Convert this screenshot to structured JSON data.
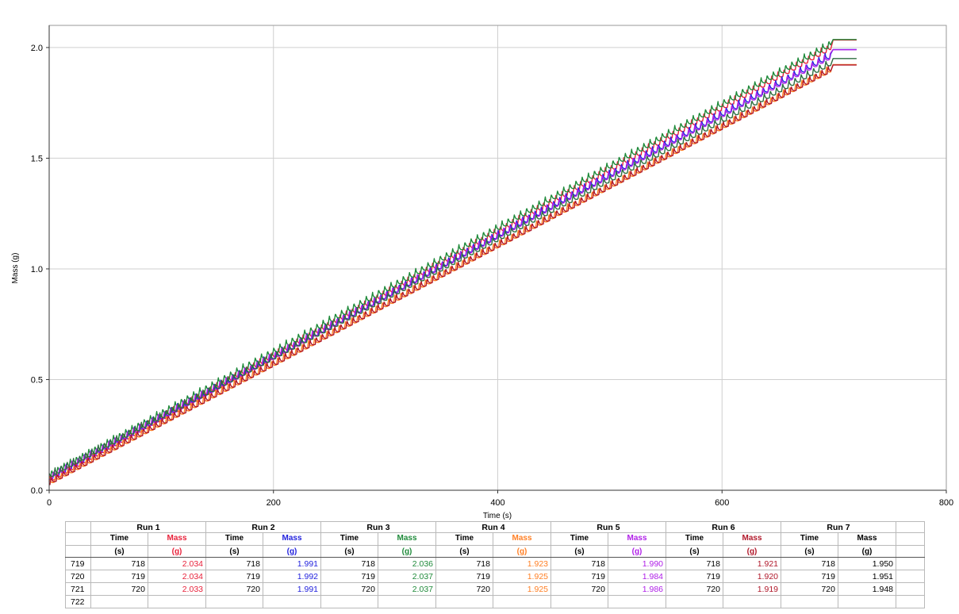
{
  "chart_data": {
    "type": "line",
    "xlabel": "Time (s)",
    "ylabel": "Mass (g)",
    "xlim": [
      0,
      800
    ],
    "ylim": [
      0.0,
      2.1
    ],
    "xticks": [
      "0",
      "200",
      "400",
      "600",
      "800"
    ],
    "yticks": [
      "0.0",
      "0.5",
      "1.0",
      "1.5",
      "2.0"
    ],
    "grid": true,
    "legend": "none",
    "drip_period_s": 5.5,
    "series": [
      {
        "name": "Run 1",
        "color": "#e8213a",
        "x": [
          0,
          697,
          720
        ],
        "y": [
          0.04,
          1.995,
          2.034
        ]
      },
      {
        "name": "Run 2",
        "color": "#2222dd",
        "x": [
          0,
          697,
          720
        ],
        "y": [
          0.05,
          1.96,
          1.991
        ]
      },
      {
        "name": "Run 3",
        "color": "#1f8a3a",
        "x": [
          0,
          697,
          720
        ],
        "y": [
          0.06,
          2.01,
          2.036
        ]
      },
      {
        "name": "Run 4",
        "color": "#ff7f24",
        "x": [
          0,
          697,
          720
        ],
        "y": [
          0.03,
          1.895,
          1.923
        ]
      },
      {
        "name": "Run 5",
        "color": "#b020e8",
        "x": [
          0,
          697,
          720
        ],
        "y": [
          0.05,
          1.955,
          1.99
        ]
      },
      {
        "name": "Run 6",
        "color": "#b0182a",
        "x": [
          0,
          697,
          720
        ],
        "y": [
          0.03,
          1.895,
          1.921
        ]
      },
      {
        "name": "Run 7",
        "color": "#2e6e40",
        "x": [
          0,
          697,
          720
        ],
        "y": [
          0.06,
          1.925,
          1.95
        ]
      }
    ]
  },
  "table": {
    "runs": [
      {
        "title": "Run 1",
        "mass_color": "#e8213a",
        "time_unit": "(s)",
        "mass_unit": "(g)",
        "time_header": "Time",
        "mass_header": "Mass",
        "rows": [
          [
            "718",
            "2.034"
          ],
          [
            "719",
            "2.034"
          ],
          [
            "720",
            "2.033"
          ]
        ]
      },
      {
        "title": "Run 2",
        "mass_color": "#2222dd",
        "time_unit": "(s)",
        "mass_unit": "(g)",
        "time_header": "Time",
        "mass_header": "Mass",
        "rows": [
          [
            "718",
            "1.991"
          ],
          [
            "719",
            "1.992"
          ],
          [
            "720",
            "1.991"
          ]
        ]
      },
      {
        "title": "Run 3",
        "mass_color": "#1f8a3a",
        "time_unit": "(s)",
        "mass_unit": "(g)",
        "time_header": "Time",
        "mass_header": "Mass",
        "rows": [
          [
            "718",
            "2.036"
          ],
          [
            "719",
            "2.037"
          ],
          [
            "720",
            "2.037"
          ]
        ]
      },
      {
        "title": "Run 4",
        "mass_color": "#ff7f24",
        "time_unit": "(s)",
        "mass_unit": "(g)",
        "time_header": "Time",
        "mass_header": "Mass",
        "rows": [
          [
            "718",
            "1.923"
          ],
          [
            "719",
            "1.925"
          ],
          [
            "720",
            "1.925"
          ]
        ]
      },
      {
        "title": "Run 5",
        "mass_color": "#b020e8",
        "time_unit": "(s)",
        "mass_unit": "(g)",
        "time_header": "Time",
        "mass_header": "Mass",
        "rows": [
          [
            "718",
            "1.990"
          ],
          [
            "719",
            "1.984"
          ],
          [
            "720",
            "1.986"
          ]
        ]
      },
      {
        "title": "Run 6",
        "mass_color": "#b0182a",
        "time_unit": "(s)",
        "mass_unit": "(g)",
        "time_header": "Time",
        "mass_header": "Mass",
        "rows": [
          [
            "718",
            "1.921"
          ],
          [
            "719",
            "1.920"
          ],
          [
            "720",
            "1.919"
          ]
        ]
      },
      {
        "title": "Run 7",
        "mass_color": "#000000",
        "time_unit": "(s)",
        "mass_unit": "(g)",
        "time_header": "Time",
        "mass_header": "Mass",
        "rows": [
          [
            "718",
            "1.950"
          ],
          [
            "719",
            "1.951"
          ],
          [
            "720",
            "1.948"
          ]
        ]
      }
    ],
    "row_numbers": [
      "719",
      "720",
      "721",
      "722"
    ]
  }
}
